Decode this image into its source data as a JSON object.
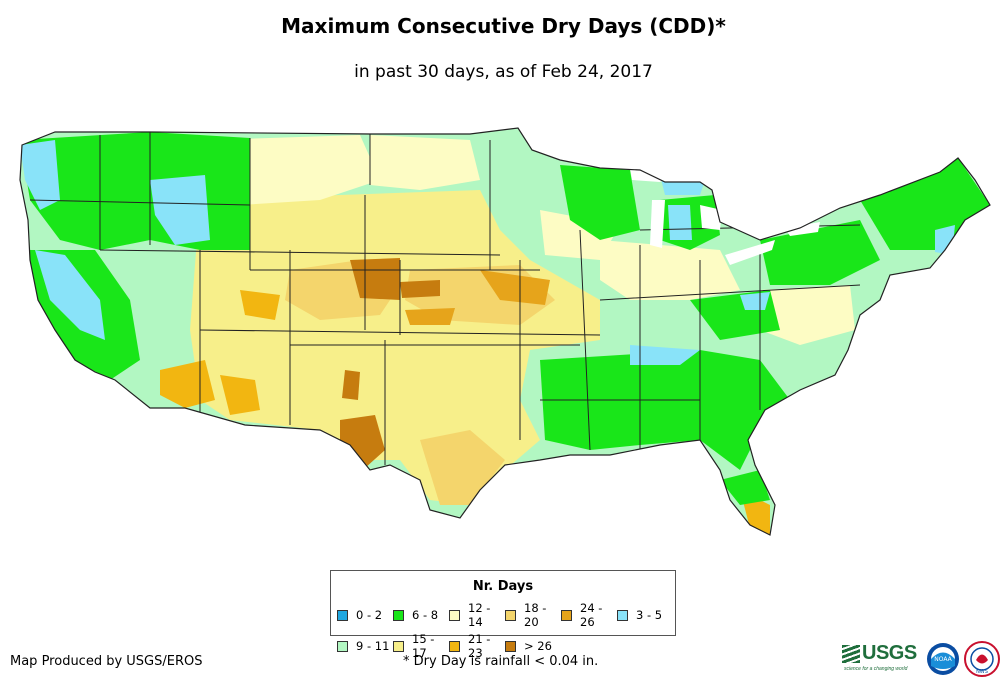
{
  "title": "Maximum Consecutive Dry Days (CDD)*",
  "subtitle": "in past 30 days, as of Feb 24, 2017",
  "legend": {
    "title": "Nr. Days",
    "items": [
      {
        "label": "0 - 2",
        "color": "#1fa7e0"
      },
      {
        "label": "6 - 8",
        "color": "#19e619"
      },
      {
        "label": "12 - 14",
        "color": "#fdfcc4"
      },
      {
        "label": "18 - 20",
        "color": "#f4d56c"
      },
      {
        "label": "24 - 26",
        "color": "#e6a41b"
      },
      {
        "label": "3 - 5",
        "color": "#89e3f9"
      },
      {
        "label": "9 - 11",
        "color": "#b2f7c2"
      },
      {
        "label": "15 - 17",
        "color": "#f7ef8a"
      },
      {
        "label": "21 - 23",
        "color": "#f2b611"
      },
      {
        "label": "> 26",
        "color": "#c67c0f"
      }
    ]
  },
  "footer": {
    "credit": "Map Produced by USGS/EROS",
    "note": "* Dry Day is rainfall < 0.04 in."
  },
  "logos": {
    "usgs": "USGS",
    "usgs_tagline": "science for a changing world",
    "noaa": "NOAA",
    "nws": "NWS"
  },
  "colors": {
    "water": "#ffffff",
    "border": "#222222"
  }
}
